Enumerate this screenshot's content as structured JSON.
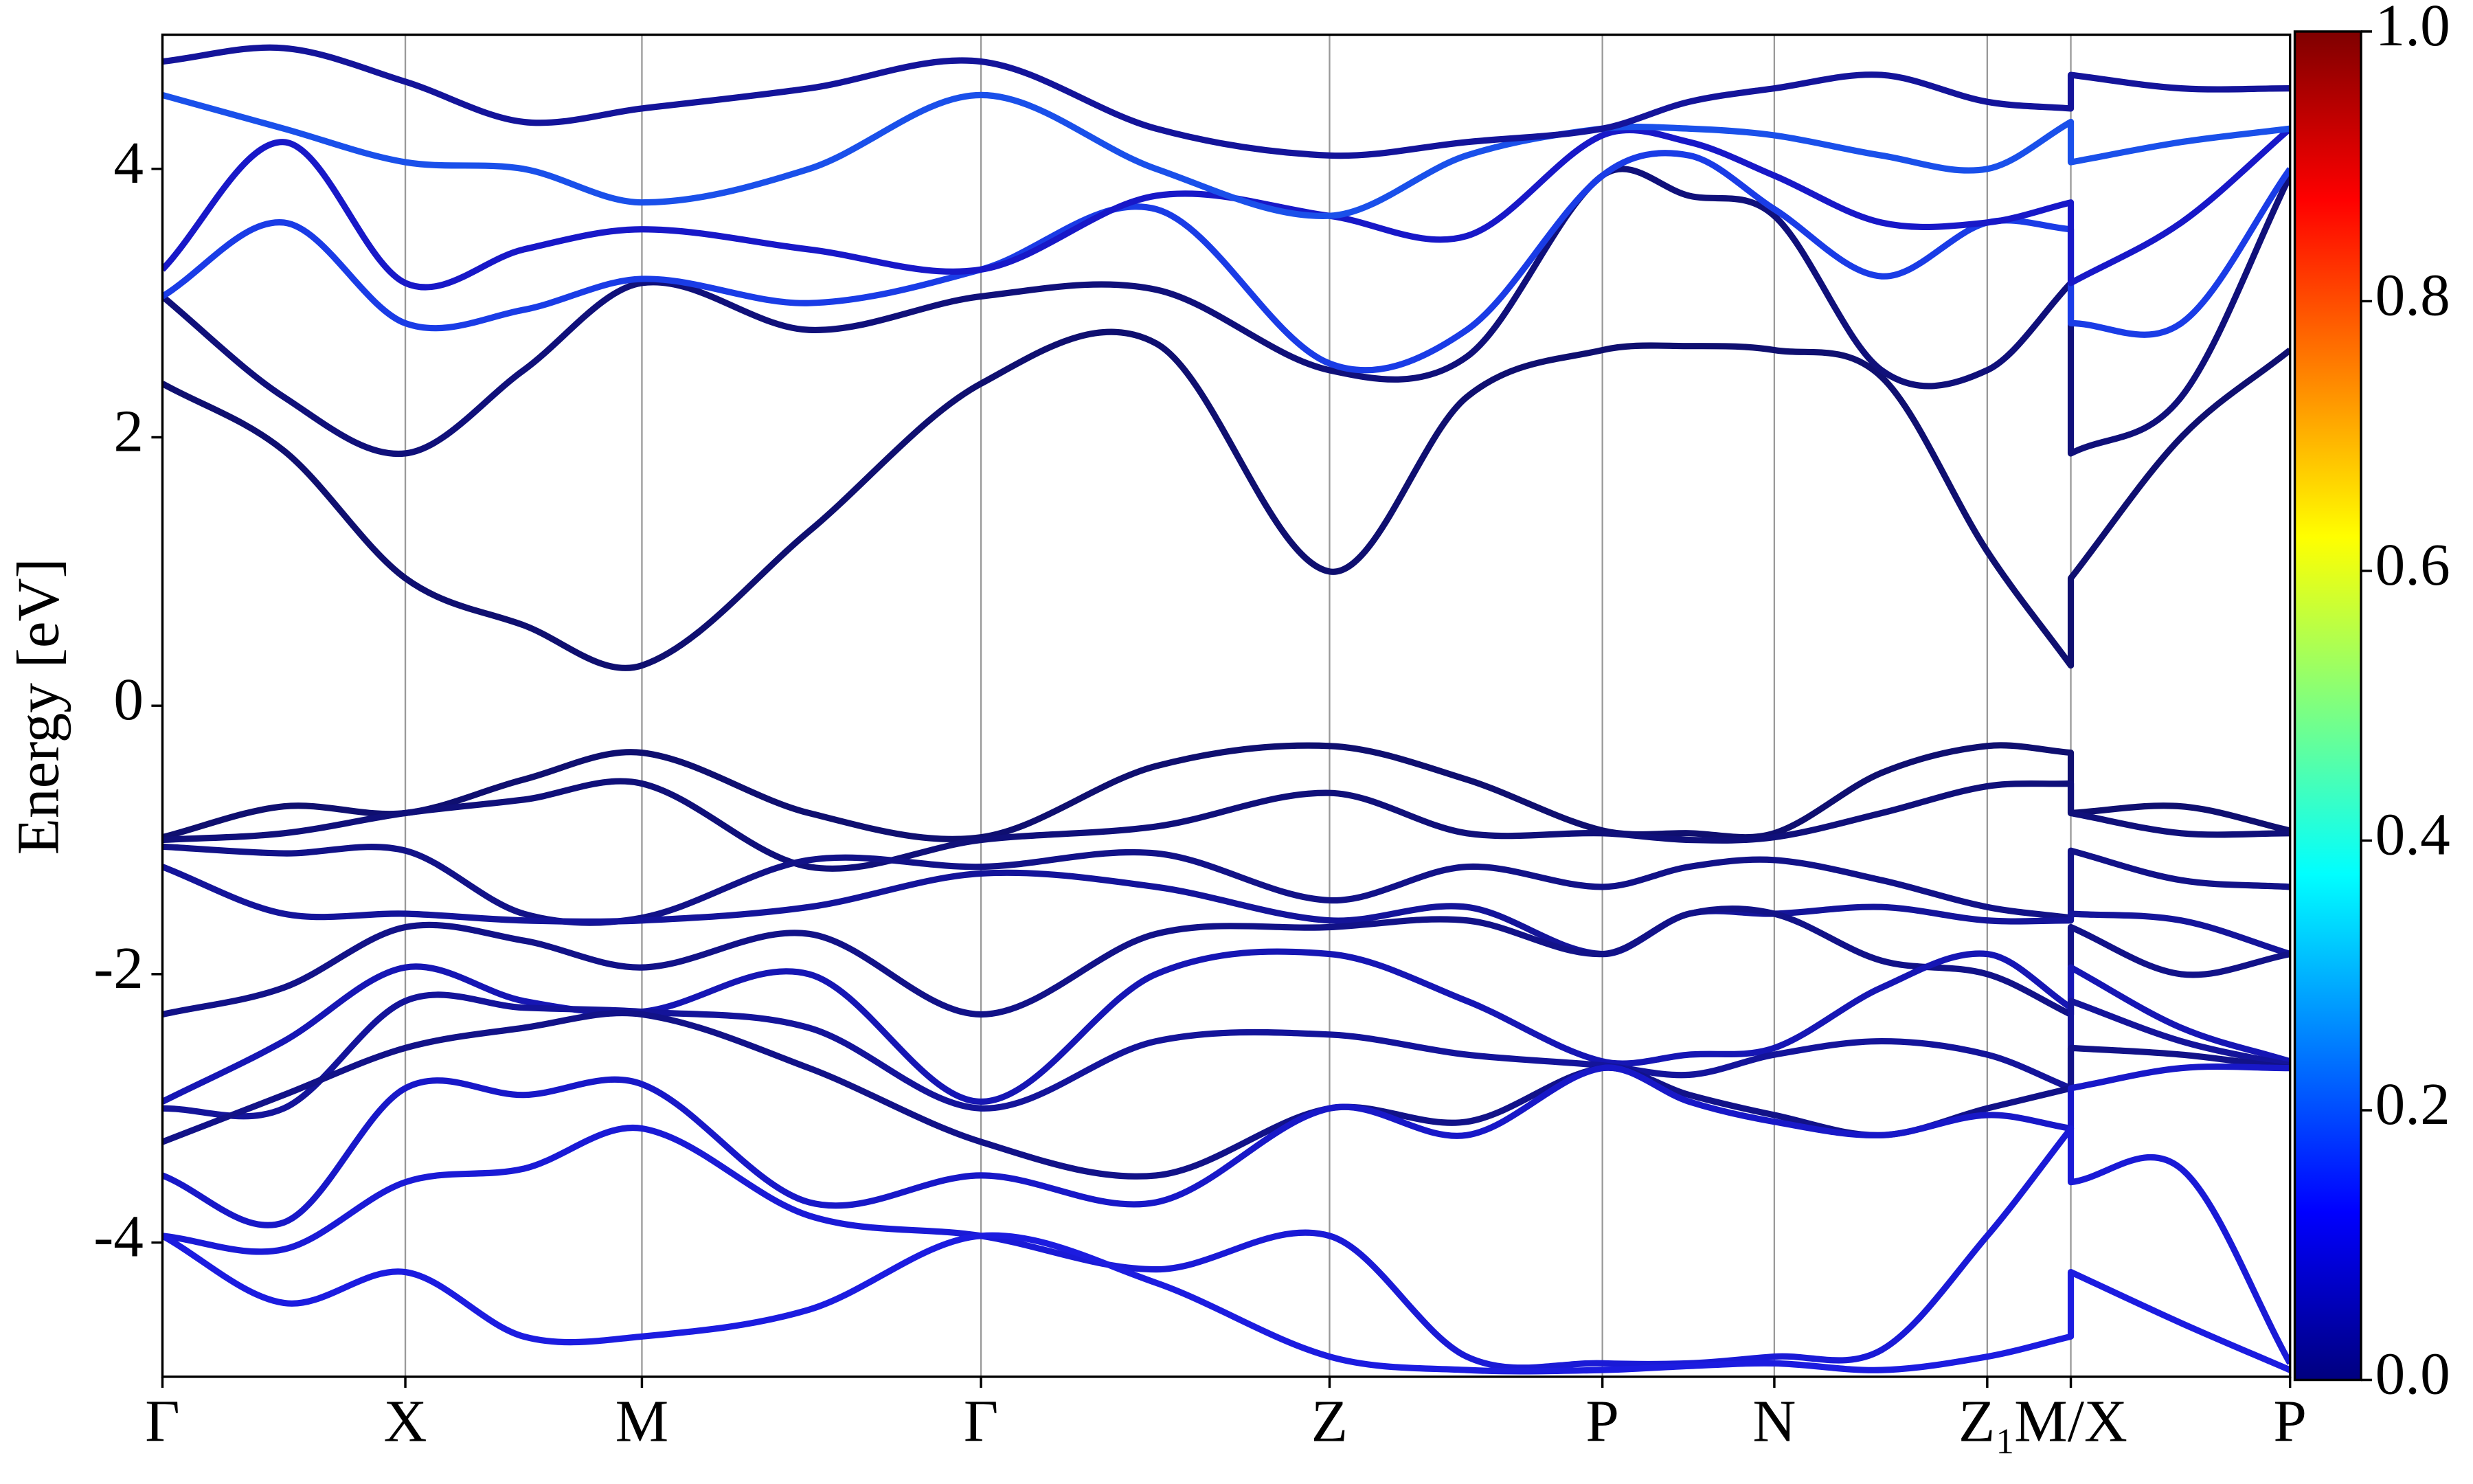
{
  "chart_data": {
    "type": "line",
    "ylabel": "Energy [eV]",
    "xlim": [
      0,
      13.49
    ],
    "ylim": [
      -5,
      5
    ],
    "yticks": [
      -4,
      -2,
      0,
      2,
      4
    ],
    "xticks": [
      {
        "value": 0,
        "label": "Γ"
      },
      {
        "value": 1.54,
        "label": "X"
      },
      {
        "value": 3.04,
        "label": "M"
      },
      {
        "value": 5.19,
        "label": "Γ"
      },
      {
        "value": 7.4,
        "label": "Z"
      },
      {
        "value": 9.13,
        "label": "P"
      },
      {
        "value": 10.22,
        "label": "N"
      },
      {
        "value": 11.57,
        "label": "Z₁"
      },
      {
        "value": 12.1,
        "label": "M/X"
      },
      {
        "value": 13.49,
        "label": "P"
      }
    ],
    "grid": true,
    "x": [
      0,
      0.77,
      1.54,
      2.29,
      3.04,
      4.1,
      5.19,
      6.3,
      7.4,
      8.27,
      9.13,
      9.68,
      10.22,
      10.9,
      11.57,
      12.1,
      12.1,
      12.8,
      13.49
    ],
    "series": [
      {
        "color": "#0f0f70",
        "values": [
          2.4,
          1.9,
          0.95,
          0.6,
          0.3,
          1.3,
          2.4,
          2.7,
          1.0,
          2.3,
          2.65,
          2.68,
          2.65,
          2.45,
          1.15,
          0.3,
          0.95,
          2.0,
          2.65
        ]
      },
      {
        "color": "#10107a",
        "values": [
          3.05,
          2.3,
          1.88,
          2.5,
          3.15,
          2.8,
          3.05,
          3.1,
          2.5,
          2.6,
          3.95,
          3.8,
          3.65,
          2.5,
          2.5,
          3.15,
          1.88,
          2.3,
          3.95
        ]
      },
      {
        "color": "#1a3ce6",
        "values": [
          3.05,
          3.6,
          2.85,
          2.95,
          3.18,
          3.0,
          3.25,
          3.7,
          2.55,
          2.8,
          3.95,
          4.1,
          3.7,
          3.2,
          3.6,
          3.55,
          2.85,
          2.85,
          4.0
        ]
      },
      {
        "color": "#1818c8",
        "values": [
          3.25,
          4.2,
          3.15,
          3.4,
          3.55,
          3.4,
          3.25,
          3.8,
          3.65,
          3.5,
          4.25,
          4.2,
          3.95,
          3.6,
          3.6,
          3.75,
          3.15,
          3.6,
          4.3
        ]
      },
      {
        "color": "#1a50ea",
        "values": [
          4.55,
          4.3,
          4.05,
          4.0,
          3.75,
          4.0,
          4.55,
          4.0,
          3.65,
          4.1,
          4.3,
          4.3,
          4.25,
          4.1,
          4.0,
          4.35,
          4.05,
          4.2,
          4.3
        ]
      },
      {
        "color": "#14149a",
        "values": [
          4.8,
          4.9,
          4.65,
          4.35,
          4.45,
          4.6,
          4.8,
          4.3,
          4.1,
          4.2,
          4.3,
          4.5,
          4.6,
          4.7,
          4.5,
          4.45,
          4.7,
          4.6,
          4.6
        ]
      },
      {
        "color": "#0f0f70",
        "values": [
          -0.98,
          -0.75,
          -0.8,
          -0.55,
          -0.35,
          -0.8,
          -0.98,
          -0.45,
          -0.3,
          -0.55,
          -0.93,
          -0.95,
          -0.95,
          -0.5,
          -0.3,
          -0.35,
          -0.8,
          -0.75,
          -0.93
        ]
      },
      {
        "color": "#10107a",
        "values": [
          -1.0,
          -0.95,
          -0.8,
          -0.7,
          -0.58,
          -1.2,
          -1.0,
          -0.9,
          -0.65,
          -0.95,
          -0.95,
          -1.0,
          -0.98,
          -0.8,
          -0.6,
          -0.58,
          -0.8,
          -0.95,
          -0.95
        ]
      },
      {
        "color": "#121288",
        "values": [
          -1.05,
          -1.1,
          -1.08,
          -1.55,
          -1.58,
          -1.15,
          -1.2,
          -1.1,
          -1.45,
          -1.2,
          -1.35,
          -1.2,
          -1.15,
          -1.3,
          -1.5,
          -1.58,
          -1.08,
          -1.3,
          -1.35
        ]
      },
      {
        "color": "#14149a",
        "values": [
          -1.2,
          -1.55,
          -1.55,
          -1.6,
          -1.6,
          -1.5,
          -1.25,
          -1.35,
          -1.6,
          -1.5,
          -1.85,
          -1.55,
          -1.55,
          -1.5,
          -1.6,
          -1.6,
          -1.55,
          -1.6,
          -1.85
        ]
      },
      {
        "color": "#121288",
        "values": [
          -2.3,
          -2.1,
          -1.65,
          -1.75,
          -1.95,
          -1.7,
          -2.3,
          -1.7,
          -1.65,
          -1.6,
          -1.85,
          -1.55,
          -1.55,
          -1.9,
          -2.0,
          -2.3,
          -1.65,
          -2.0,
          -1.85
        ]
      },
      {
        "color": "#1616b4",
        "values": [
          -2.95,
          -2.5,
          -1.95,
          -2.2,
          -2.28,
          -2.0,
          -2.95,
          -2.0,
          -1.85,
          -2.2,
          -2.65,
          -2.6,
          -2.55,
          -2.1,
          -1.85,
          -2.25,
          -1.95,
          -2.4,
          -2.65
        ]
      },
      {
        "color": "#14149a",
        "values": [
          -3.0,
          -3.0,
          -2.2,
          -2.25,
          -2.28,
          -2.4,
          -3.0,
          -2.5,
          -2.45,
          -2.6,
          -2.68,
          -2.75,
          -2.6,
          -2.5,
          -2.6,
          -2.85,
          -2.2,
          -2.5,
          -2.68
        ]
      },
      {
        "color": "#121288",
        "values": [
          -3.25,
          -2.9,
          -2.55,
          -2.4,
          -2.3,
          -2.7,
          -3.25,
          -3.5,
          -3.0,
          -3.1,
          -2.7,
          -2.9,
          -3.05,
          -3.2,
          -3.0,
          -2.85,
          -2.55,
          -2.6,
          -2.7
        ]
      },
      {
        "color": "#1818c8",
        "values": [
          -3.5,
          -3.85,
          -2.85,
          -2.9,
          -2.82,
          -3.7,
          -3.5,
          -3.7,
          -3.0,
          -3.2,
          -2.7,
          -2.95,
          -3.1,
          -3.2,
          -3.05,
          -3.15,
          -2.85,
          -2.7,
          -2.7
        ]
      },
      {
        "color": "#1a1ad6",
        "values": [
          -3.95,
          -4.05,
          -3.55,
          -3.45,
          -3.15,
          -3.8,
          -3.95,
          -4.2,
          -3.95,
          -4.85,
          -4.9,
          -4.9,
          -4.85,
          -4.8,
          -3.95,
          -3.15,
          -3.55,
          -3.45,
          -4.9
        ]
      },
      {
        "color": "#1c1ce0",
        "values": [
          -3.95,
          -4.45,
          -4.22,
          -4.7,
          -4.7,
          -4.5,
          -3.95,
          -4.3,
          -4.85,
          -4.95,
          -4.95,
          -4.92,
          -4.9,
          -4.95,
          -4.85,
          -4.7,
          -4.22,
          -4.6,
          -4.95
        ]
      }
    ],
    "colorbar": {
      "cmap": "jet",
      "lim": [
        0,
        1
      ],
      "ticks": [
        {
          "value": 0,
          "label": "0.0"
        },
        {
          "value": 0.2,
          "label": "0.2"
        },
        {
          "value": 0.4,
          "label": "0.4"
        },
        {
          "value": 0.6,
          "label": "0.6"
        },
        {
          "value": 0.8,
          "label": "0.8"
        },
        {
          "value": 1,
          "label": "1.0"
        }
      ]
    }
  }
}
